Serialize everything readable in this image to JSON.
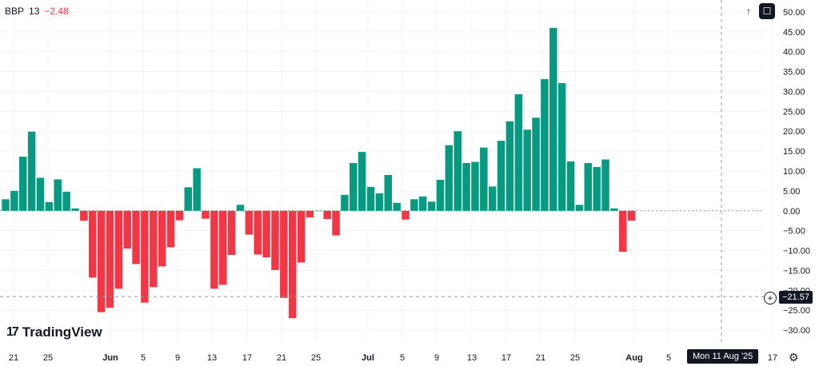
{
  "legend": {
    "symbol": "BBP",
    "length": "13",
    "value": "−2.48"
  },
  "toolbar": {
    "arrow_up_icon": "↑",
    "fullscreen_icon": "☐"
  },
  "logo": {
    "mark": "17",
    "text": "TradingView"
  },
  "crosshair": {
    "price_label": "−21.57",
    "date_label": "Mon 11 Aug '25",
    "plus_icon": "+",
    "price": -21.57
  },
  "settings_icon": "⚙",
  "colors": {
    "up": "#089981",
    "down": "#f23645",
    "grid": "#f0f3fa",
    "text": "#131722",
    "crosshair": "#9598a1"
  },
  "chart_data": {
    "type": "bar",
    "ylim": [
      -33,
      53
    ],
    "y_ticks": [
      "50.00",
      "45.00",
      "40.00",
      "35.00",
      "30.00",
      "25.00",
      "20.00",
      "15.00",
      "10.00",
      "5.00",
      "0.00",
      "−5.00",
      "−10.00",
      "−15.00",
      "−20.00",
      "−25.00",
      "−30.00"
    ],
    "x_ticks": [
      "21",
      "25",
      "Jun",
      "5",
      "9",
      "13",
      "17",
      "21",
      "25",
      "Jul",
      "5",
      "9",
      "13",
      "17",
      "21",
      "25",
      "Aug",
      "5",
      "17"
    ],
    "values": [
      2.9,
      5.0,
      13.6,
      19.9,
      8.3,
      2.2,
      7.9,
      4.8,
      0.6,
      -2.5,
      -16.8,
      -25.5,
      -24.4,
      -19.6,
      -9.5,
      -13.4,
      -23.1,
      -19.2,
      -14.0,
      -9.2,
      -2.4,
      5.9,
      10.7,
      -2.0,
      -19.6,
      -18.6,
      -11.1,
      1.5,
      -6.0,
      -11.0,
      -11.7,
      -14.9,
      -21.9,
      -27.0,
      -13.0,
      -1.7,
      0.0,
      -2.1,
      -6.2,
      4.0,
      12.0,
      14.8,
      6.0,
      4.4,
      9.0,
      2.0,
      -2.2,
      2.9,
      3.6,
      2.3,
      7.8,
      16.5,
      20.0,
      12.0,
      12.3,
      15.9,
      6.1,
      17.6,
      22.5,
      29.3,
      20.4,
      23.4,
      33.1,
      46.0,
      32.1,
      12.4,
      1.5,
      12.0,
      11.0,
      12.9,
      0.6,
      -10.3,
      -2.48
    ]
  }
}
